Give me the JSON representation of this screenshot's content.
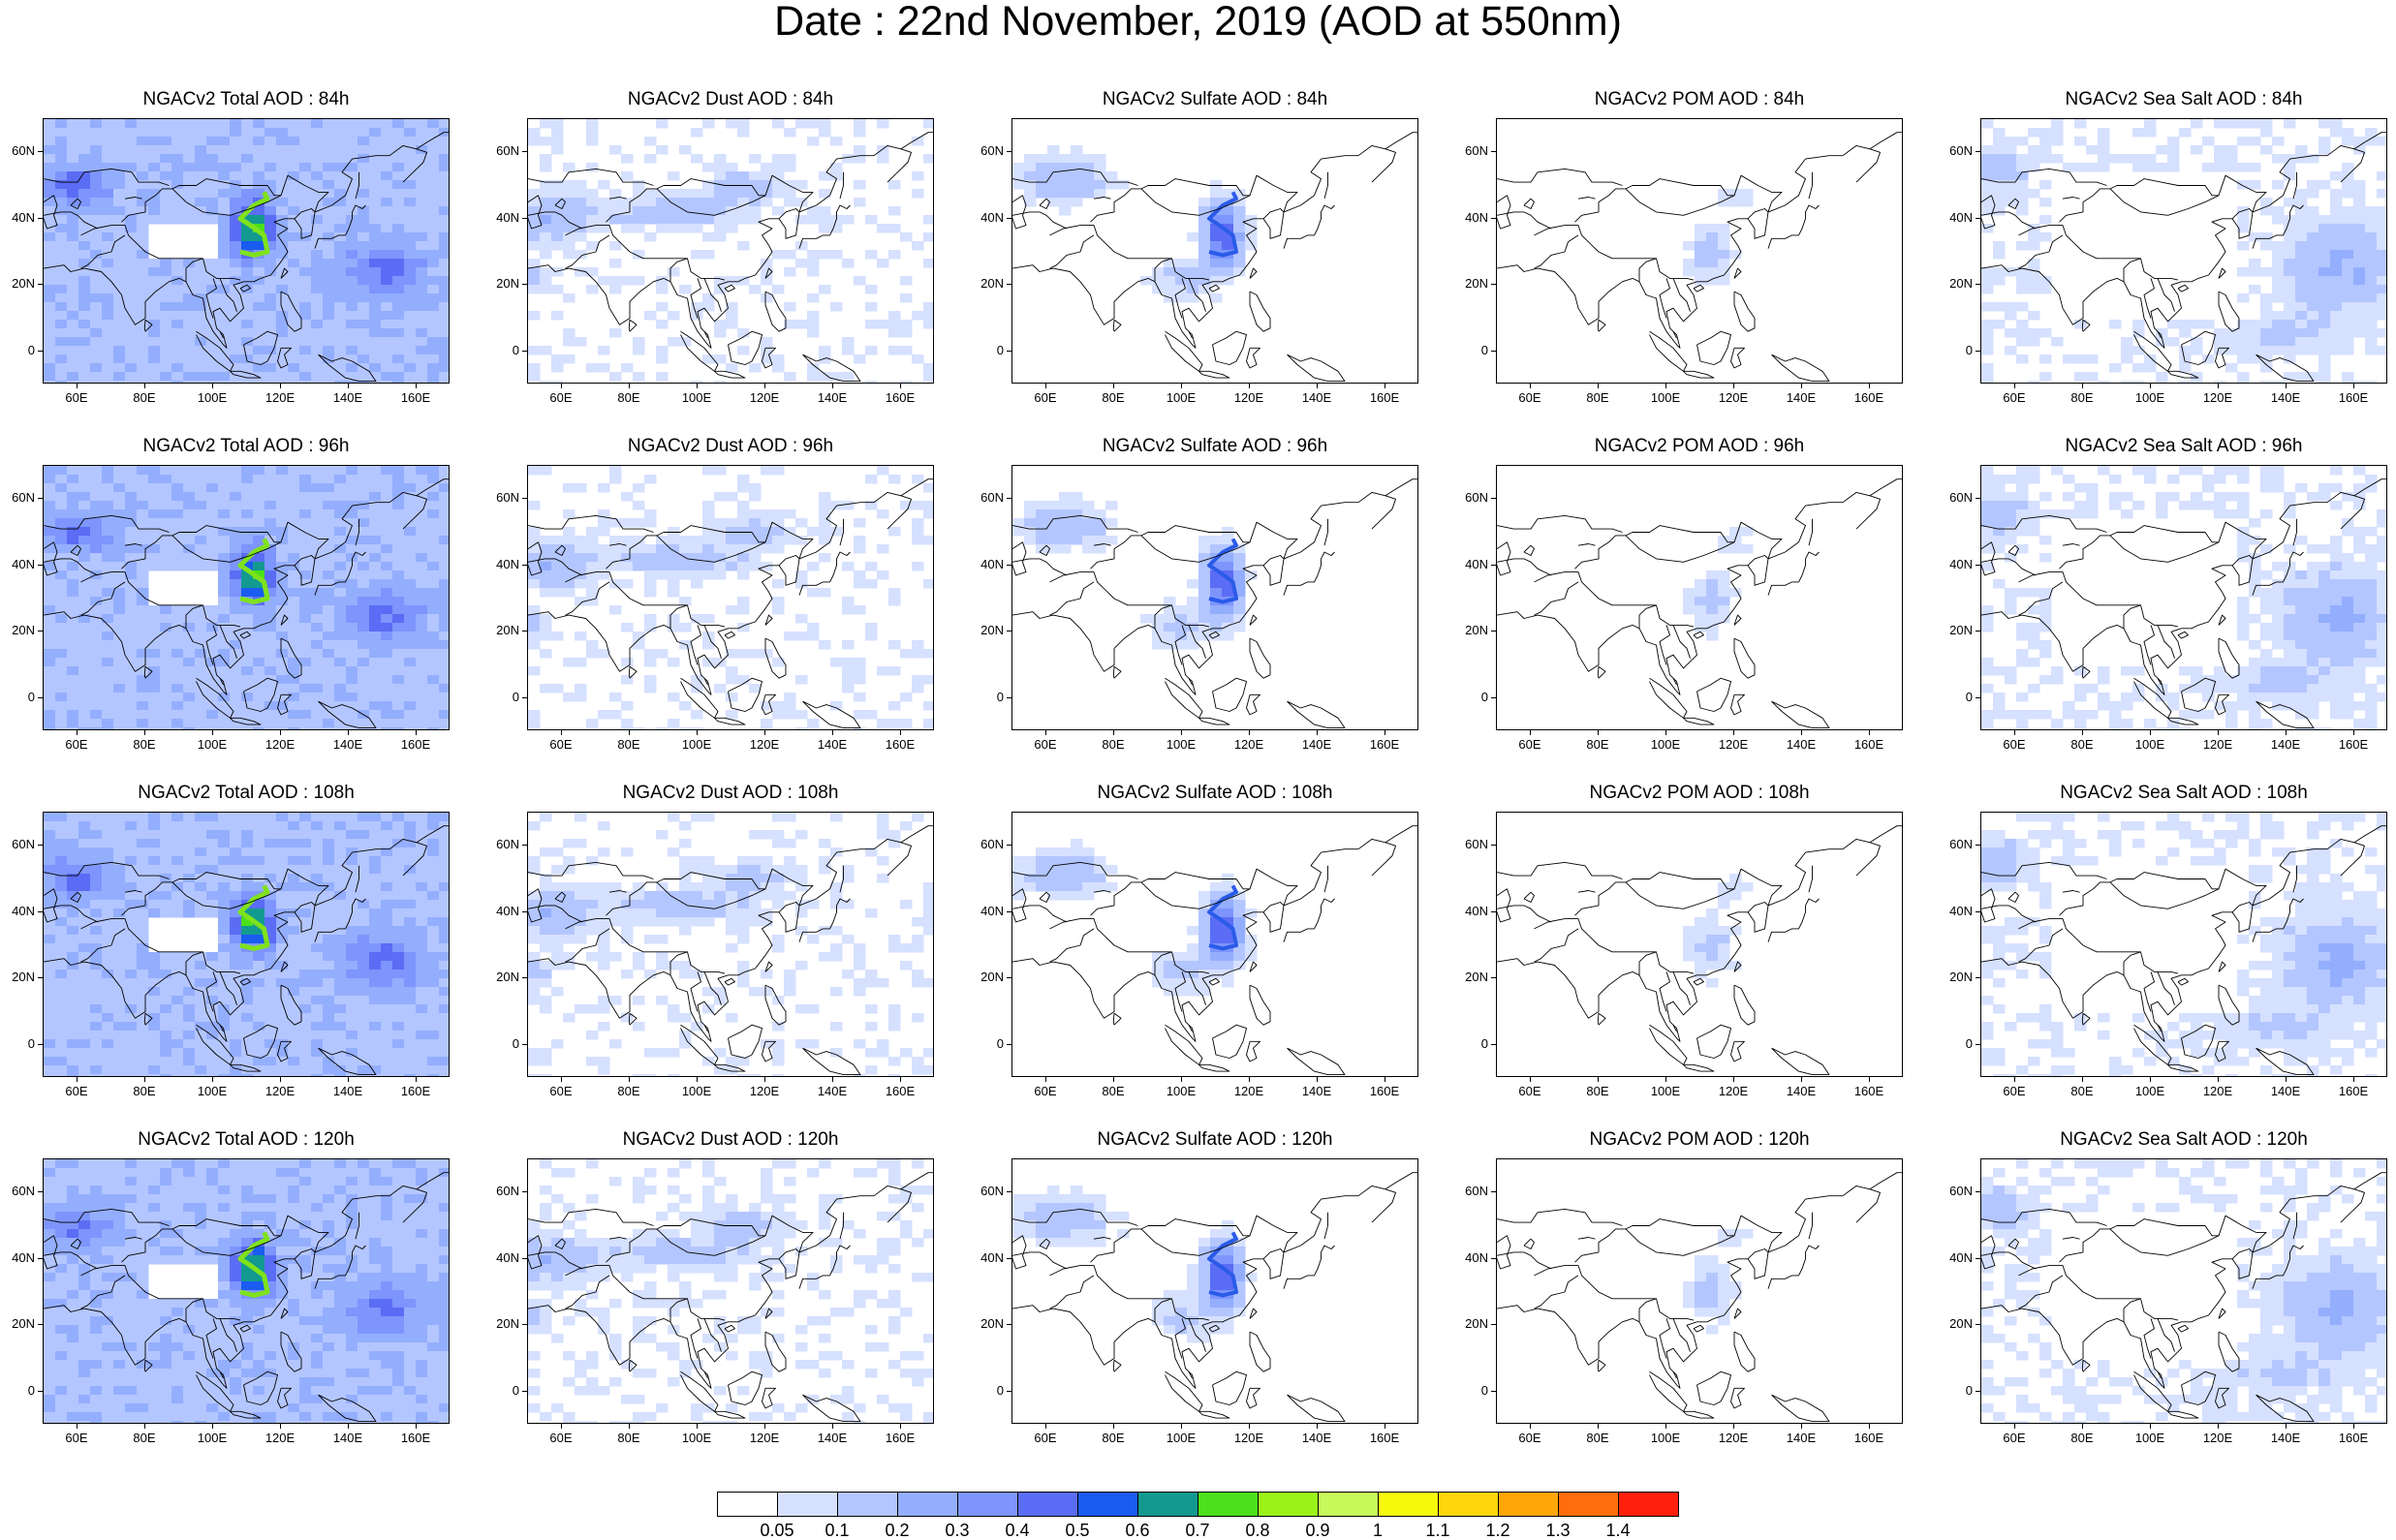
{
  "title": "Date : 22nd November, 2019 (AOD at 550nm)",
  "map": {
    "lat_ticks": [
      "60N",
      "40N",
      "20N",
      "0"
    ],
    "lon_ticks": [
      "60E",
      "80E",
      "100E",
      "120E",
      "140E",
      "160E"
    ]
  },
  "colorbar": {
    "colors": [
      "#ffffff",
      "#d6e0ff",
      "#b4c6ff",
      "#94aefe",
      "#7d95fc",
      "#5b6cf5",
      "#1a5cf0",
      "#139a90",
      "#4ce01a",
      "#9bf31a",
      "#c6f95a",
      "#f7f90d",
      "#ffd60b",
      "#ffa608",
      "#ff6e0a",
      "#ff200c"
    ],
    "labels": [
      "0.05",
      "0.1",
      "0.2",
      "0.3",
      "0.4",
      "0.5",
      "0.6",
      "0.7",
      "0.8",
      "0.9",
      "1",
      "1.1",
      "1.2",
      "1.3",
      "1.4"
    ]
  },
  "panels": [
    {
      "title": "NGACv2 Total AOD : 84h",
      "species": "total",
      "lead": "84h"
    },
    {
      "title": "NGACv2 Dust AOD : 84h",
      "species": "dust",
      "lead": "84h"
    },
    {
      "title": "NGACv2 Sulfate AOD : 84h",
      "species": "sulfate",
      "lead": "84h"
    },
    {
      "title": "NGACv2 POM AOD : 84h",
      "species": "pom",
      "lead": "84h"
    },
    {
      "title": "NGACv2 Sea Salt AOD : 84h",
      "species": "seasalt",
      "lead": "84h"
    },
    {
      "title": "NGACv2 Total AOD : 96h",
      "species": "total",
      "lead": "96h"
    },
    {
      "title": "NGACv2 Dust AOD : 96h",
      "species": "dust",
      "lead": "96h"
    },
    {
      "title": "NGACv2 Sulfate AOD : 96h",
      "species": "sulfate",
      "lead": "96h"
    },
    {
      "title": "NGACv2 POM AOD : 96h",
      "species": "pom",
      "lead": "96h"
    },
    {
      "title": "NGACv2 Sea Salt AOD : 96h",
      "species": "seasalt",
      "lead": "96h"
    },
    {
      "title": "NGACv2 Total AOD : 108h",
      "species": "total",
      "lead": "108h"
    },
    {
      "title": "NGACv2 Dust AOD : 108h",
      "species": "dust",
      "lead": "108h"
    },
    {
      "title": "NGACv2 Sulfate AOD : 108h",
      "species": "sulfate",
      "lead": "108h"
    },
    {
      "title": "NGACv2 POM AOD : 108h",
      "species": "pom",
      "lead": "108h"
    },
    {
      "title": "NGACv2 Sea Salt AOD : 108h",
      "species": "seasalt",
      "lead": "108h"
    },
    {
      "title": "NGACv2 Total AOD : 120h",
      "species": "total",
      "lead": "120h"
    },
    {
      "title": "NGACv2 Dust AOD : 120h",
      "species": "dust",
      "lead": "120h"
    },
    {
      "title": "NGACv2 Sulfate AOD : 120h",
      "species": "sulfate",
      "lead": "120h"
    },
    {
      "title": "NGACv2 POM AOD : 120h",
      "species": "pom",
      "lead": "120h"
    },
    {
      "title": "NGACv2 Sea Salt  AOD : 120h",
      "species": "seasalt",
      "lead": "120h"
    }
  ]
}
